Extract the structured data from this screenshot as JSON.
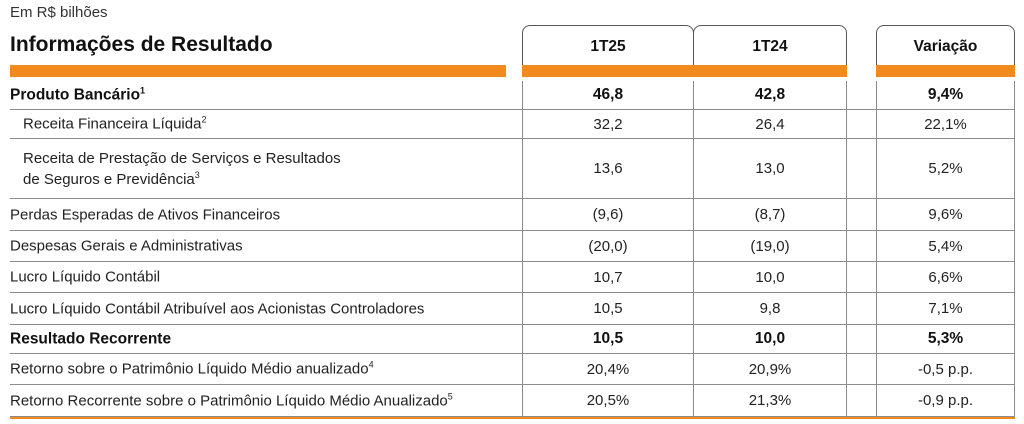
{
  "unit_label": "Em R$ bilhões",
  "table": {
    "title": "Informações de Resultado",
    "columns": [
      "1T25",
      "1T24",
      "Variação"
    ],
    "accent_color": "#f28a1e",
    "rows": [
      {
        "label": "Produto Bancário",
        "note": "1",
        "bold": true,
        "indent": false,
        "values": [
          "46,8",
          "42,8",
          "9,4%"
        ]
      },
      {
        "label": "Receita Financeira Líquida",
        "note": "2",
        "bold": false,
        "indent": true,
        "values": [
          "32,2",
          "26,4",
          "22,1%"
        ]
      },
      {
        "label": "Receita de Prestação de Serviços e Resultados",
        "label_line2": "de Seguros e Previdência",
        "note": "3",
        "bold": false,
        "indent": true,
        "values": [
          "13,6",
          "13,0",
          "5,2%"
        ]
      },
      {
        "label": "Perdas Esperadas de Ativos Financeiros",
        "note": "",
        "bold": false,
        "indent": false,
        "values": [
          "(9,6)",
          "(8,7)",
          "9,6%"
        ]
      },
      {
        "label": "Despesas Gerais e Administrativas",
        "note": "",
        "bold": false,
        "indent": false,
        "values": [
          "(20,0)",
          "(19,0)",
          "5,4%"
        ]
      },
      {
        "label": "Lucro Líquido Contábil",
        "note": "",
        "bold": false,
        "indent": false,
        "values": [
          "10,7",
          "10,0",
          "6,6%"
        ]
      },
      {
        "label": "Lucro Líquido Contábil Atribuível aos Acionistas Controladores",
        "note": "",
        "bold": false,
        "indent": false,
        "values": [
          "10,5",
          "9,8",
          "7,1%"
        ]
      },
      {
        "label": "Resultado Recorrente",
        "note": "",
        "bold": true,
        "indent": false,
        "values": [
          "10,5",
          "10,0",
          "5,3%"
        ]
      },
      {
        "label": "Retorno sobre o Patrimônio Líquido Médio anualizado",
        "note": "4",
        "bold": false,
        "indent": false,
        "values": [
          "20,4%",
          "20,9%",
          "-0,5 p.p."
        ]
      },
      {
        "label": "Retorno Recorrente sobre o Patrimônio Líquido Médio Anualizado",
        "note": "5",
        "bold": false,
        "indent": false,
        "values": [
          "20,5%",
          "21,3%",
          "-0,9 p.p."
        ]
      }
    ]
  }
}
